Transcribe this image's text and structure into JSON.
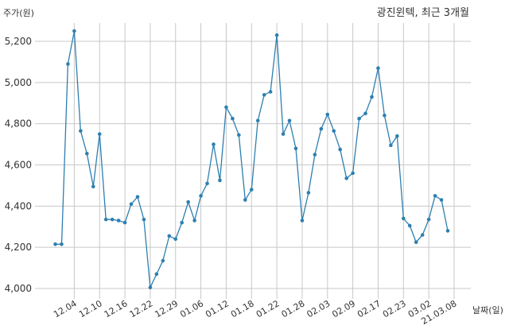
{
  "chart_data": {
    "type": "line",
    "title": "광진윈텍, 최근 3개월",
    "ylabel": "주가(원)",
    "xlabel": "날짜(일)",
    "ylim": [
      3950,
      5400
    ],
    "yticks": [
      4000,
      4200,
      4400,
      4600,
      4800,
      5000,
      5200
    ],
    "ytick_labels": [
      "4,000",
      "4,200",
      "4,400",
      "4,600",
      "4,800",
      "5,000",
      "5,200"
    ],
    "xtick_labels": [
      "12.04",
      "12.10",
      "12.16",
      "12.22",
      "12.29",
      "01.06",
      "01.12",
      "01.18",
      "01.22",
      "01.28",
      "02.03",
      "02.09",
      "02.17",
      "02.23",
      "03.02",
      "21.03.08"
    ],
    "xtick_index": [
      3,
      7,
      11,
      15,
      19,
      23,
      27,
      31,
      35,
      39,
      43,
      47,
      51,
      55,
      59,
      63
    ],
    "grid": true,
    "line_color": "#2e7fb0",
    "series": [
      {
        "values": [
          4215,
          4215,
          5090,
          5250,
          4765,
          4655,
          4495,
          4750,
          4335,
          4335,
          4330,
          4320,
          4410,
          4445,
          4335,
          4005,
          4070,
          4135,
          4255,
          4240,
          4320,
          4420,
          4330,
          4450,
          4510,
          4700,
          4525,
          4880,
          4825,
          4745,
          4430,
          4480,
          4815,
          4940,
          4955,
          5230,
          4750,
          4815,
          4680,
          4330,
          4465,
          4650,
          4775,
          4845,
          4765,
          4675,
          4535,
          4560,
          4825,
          4850,
          4930,
          5070,
          4840,
          4695,
          4740,
          4340,
          4305,
          4225,
          4260,
          4335,
          4450,
          4430,
          4280
        ]
      }
    ]
  }
}
